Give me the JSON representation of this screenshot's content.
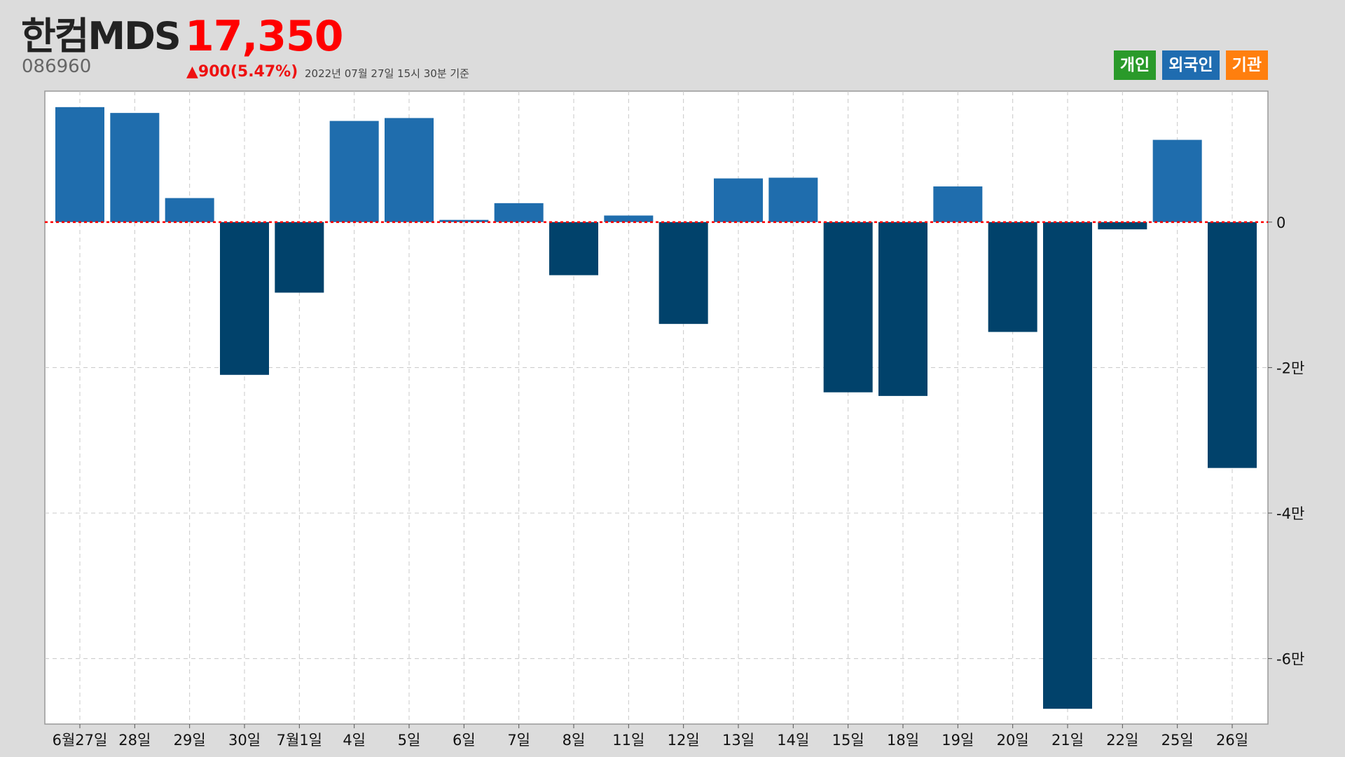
{
  "header": {
    "name": "한컴MDS",
    "code": "086960",
    "price": "17,350",
    "change": "▲900(5.47%)",
    "timestamp": "2022년 07월 27일 15시 30분 기준"
  },
  "legend": [
    {
      "label": "개인",
      "color": "#2a9a2a"
    },
    {
      "label": "외국인",
      "color": "#1f6cb0"
    },
    {
      "label": "기관",
      "color": "#ff7f0e"
    }
  ],
  "colors": {
    "positive": "#1f6dad",
    "negative": "#01426b",
    "zero_line": "#ff0000"
  },
  "chart_data": {
    "type": "bar",
    "series": [
      {
        "name": "외국인",
        "values": [
          15800,
          15000,
          3300,
          -21000,
          -9700,
          13900,
          14300,
          300,
          2600,
          -7300,
          900,
          -14000,
          6000,
          6100,
          -23400,
          -23900,
          4900,
          -15100,
          -66900,
          -1000,
          11300,
          -33800
        ]
      }
    ],
    "categories": [
      "6월27일",
      "28일",
      "29일",
      "30일",
      "7월1일",
      "4일",
      "5일",
      "6일",
      "7일",
      "8일",
      "11일",
      "12일",
      "13일",
      "14일",
      "15일",
      "18일",
      "19일",
      "20일",
      "21일",
      "22일",
      "25일",
      "26일"
    ],
    "ylim": [
      -69000,
      18000
    ],
    "yticks": [
      {
        "value": 0,
        "label": "0"
      },
      {
        "value": -20000,
        "label": "-2만"
      },
      {
        "value": -40000,
        "label": "-4만"
      },
      {
        "value": -60000,
        "label": "-6만"
      }
    ],
    "grid": true
  }
}
